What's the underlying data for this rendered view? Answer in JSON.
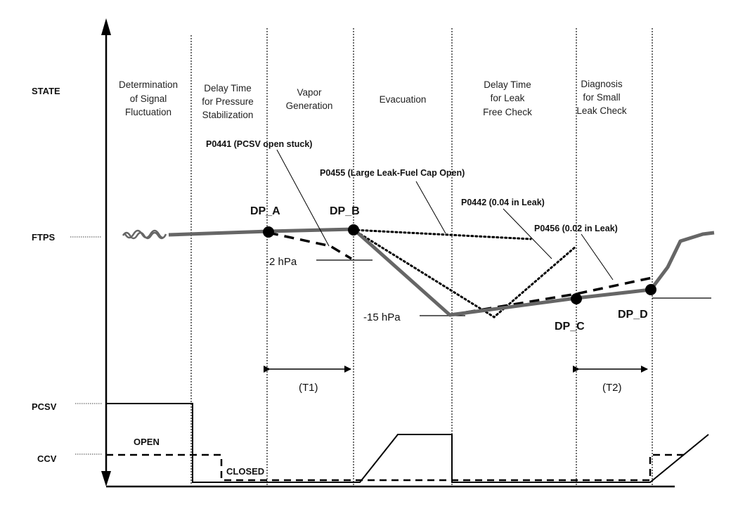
{
  "row_labels": {
    "state": "STATE",
    "ftps": "FTPS",
    "pcsv": "PCSV",
    "ccv": "CCV"
  },
  "phases": [
    {
      "lines": [
        "Determination",
        "of Signal",
        "Fluctuation"
      ]
    },
    {
      "lines": [
        "Delay Time",
        "for Pressure",
        "Stabilization"
      ]
    },
    {
      "lines": [
        "Vapor",
        "Generation"
      ]
    },
    {
      "lines": [
        "Evacuation"
      ]
    },
    {
      "lines": [
        "Delay Time",
        "for Leak",
        "Free Check"
      ]
    },
    {
      "lines": [
        "Diagnosis",
        "for Small",
        "Leak Check"
      ]
    }
  ],
  "decision_points": {
    "a": "DP_A",
    "b": "DP_B",
    "c": "DP_C",
    "d": "DP_D"
  },
  "pressure_levels": {
    "minus2": "-2 hPa",
    "minus15": "-15 hPa"
  },
  "fault_codes": {
    "p0441": "P0441 (PCSV open stuck)",
    "p0455": "P0455 (Large Leak-Fuel Cap Open)",
    "p0442": "P0442 (0.04 in Leak)",
    "p0456": "P0456 (0.02 in Leak)"
  },
  "intervals": {
    "t1": "(T1)",
    "t2": "(T2)"
  },
  "valve_states": {
    "open": "OPEN",
    "closed": "CLOSED"
  },
  "colors": {
    "ftps_trace": "#666666",
    "lines": "#000000"
  }
}
